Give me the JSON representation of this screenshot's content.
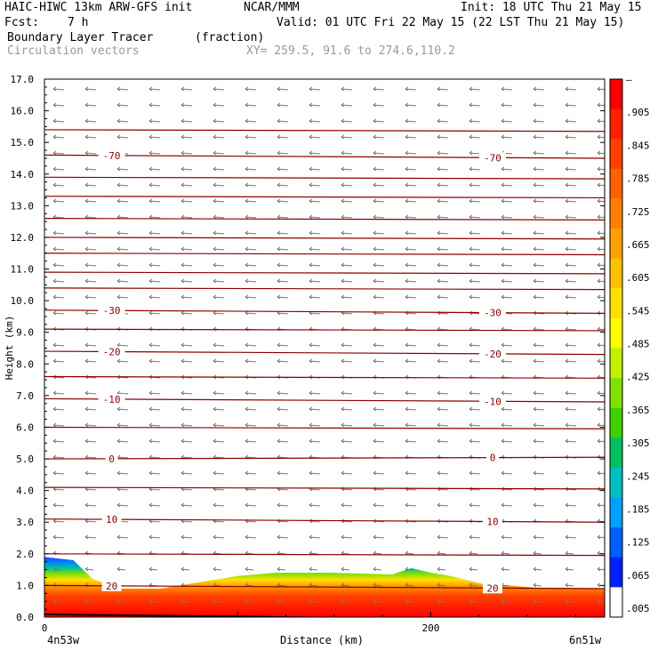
{
  "header": {
    "line1_left": "HAIC-HIWC 13km ARW-GFS init",
    "line1_mid": "NCAR/MMM",
    "line1_right": "Init: 18 UTC Thu 21 May 15",
    "line2_left_label": "Fcst:",
    "line2_left_value": "7 h",
    "line2_right": "Valid: 01 UTC Fri 22 May 15 (22 LST Thu 21 May 15)",
    "field_name": "Boundary Layer Tracer",
    "field_units": "(fraction)",
    "vector_name": "Circulation vectors",
    "xy_text": "XY= 259.5, 91.6 to 274.6,110.2"
  },
  "axes": {
    "ylabel": "Height (km)",
    "xlabel": "Distance (km)",
    "x_start_label": "4n53w",
    "x_end_label": "6n51w",
    "y_ticks": [
      "0.0",
      "1.0",
      "2.0",
      "3.0",
      "4.0",
      "5.0",
      "6.0",
      "7.0",
      "8.0",
      "9.0",
      "10.0",
      "11.0",
      "12.0",
      "13.0",
      "14.0",
      "15.0",
      "16.0",
      "17.0"
    ],
    "x_ticks": [
      "0",
      "200"
    ]
  },
  "colorbar": {
    "labels": [
      "–",
      ".905",
      ".845",
      ".785",
      ".725",
      ".665",
      ".605",
      ".545",
      ".485",
      ".425",
      ".365",
      ".305",
      ".245",
      ".185",
      ".125",
      ".065",
      ".005"
    ],
    "colors": [
      "#ff0000",
      "#ff2000",
      "#ff4000",
      "#ff6000",
      "#ff8000",
      "#ffa000",
      "#ffc000",
      "#ffe000",
      "#ffff00",
      "#c0f000",
      "#80e000",
      "#40d000",
      "#00c060",
      "#00c0c0",
      "#00a0ff",
      "#0060ff",
      "#0020ff",
      "#ffffff"
    ]
  },
  "chart_data": {
    "type": "heatmap",
    "title": "Boundary Layer Tracer",
    "units": "(fraction)",
    "xlabel": "Distance (km)",
    "ylabel": "Height (km)",
    "ylim": [
      0,
      17
    ],
    "xlim": [
      0,
      290
    ],
    "temperature_contours": [
      {
        "label": "-70",
        "y_left": 14.6,
        "y_right": 14.5
      },
      {
        "label": "-30",
        "y_left": 9.7,
        "y_right": 9.6
      },
      {
        "label": "-20",
        "y_left": 8.4,
        "y_right": 8.3
      },
      {
        "label": "-10",
        "y_left": 6.9,
        "y_right": 6.8
      },
      {
        "label": "0",
        "y_left": 5.0,
        "y_right": 5.05
      },
      {
        "label": "10",
        "y_left": 3.1,
        "y_right": 3.0
      },
      {
        "label": "20",
        "y_left": 1.0,
        "y_right": 0.9
      }
    ],
    "unlabeled_contour_heights": [
      15.4,
      13.9,
      13.3,
      12.6,
      12.0,
      11.5,
      10.9,
      10.4,
      9.1,
      7.6,
      6.0,
      4.1,
      2.0
    ],
    "tracer_top_profile": {
      "x": [
        0,
        15,
        25,
        40,
        60,
        80,
        100,
        120,
        150,
        180,
        190,
        200,
        210,
        230,
        240,
        260,
        290
      ],
      "top_height": [
        1.9,
        1.8,
        1.2,
        0.9,
        0.9,
        1.1,
        1.3,
        1.4,
        1.4,
        1.35,
        1.55,
        1.4,
        1.3,
        1.0,
        1.0,
        0.9,
        0.9
      ]
    }
  }
}
